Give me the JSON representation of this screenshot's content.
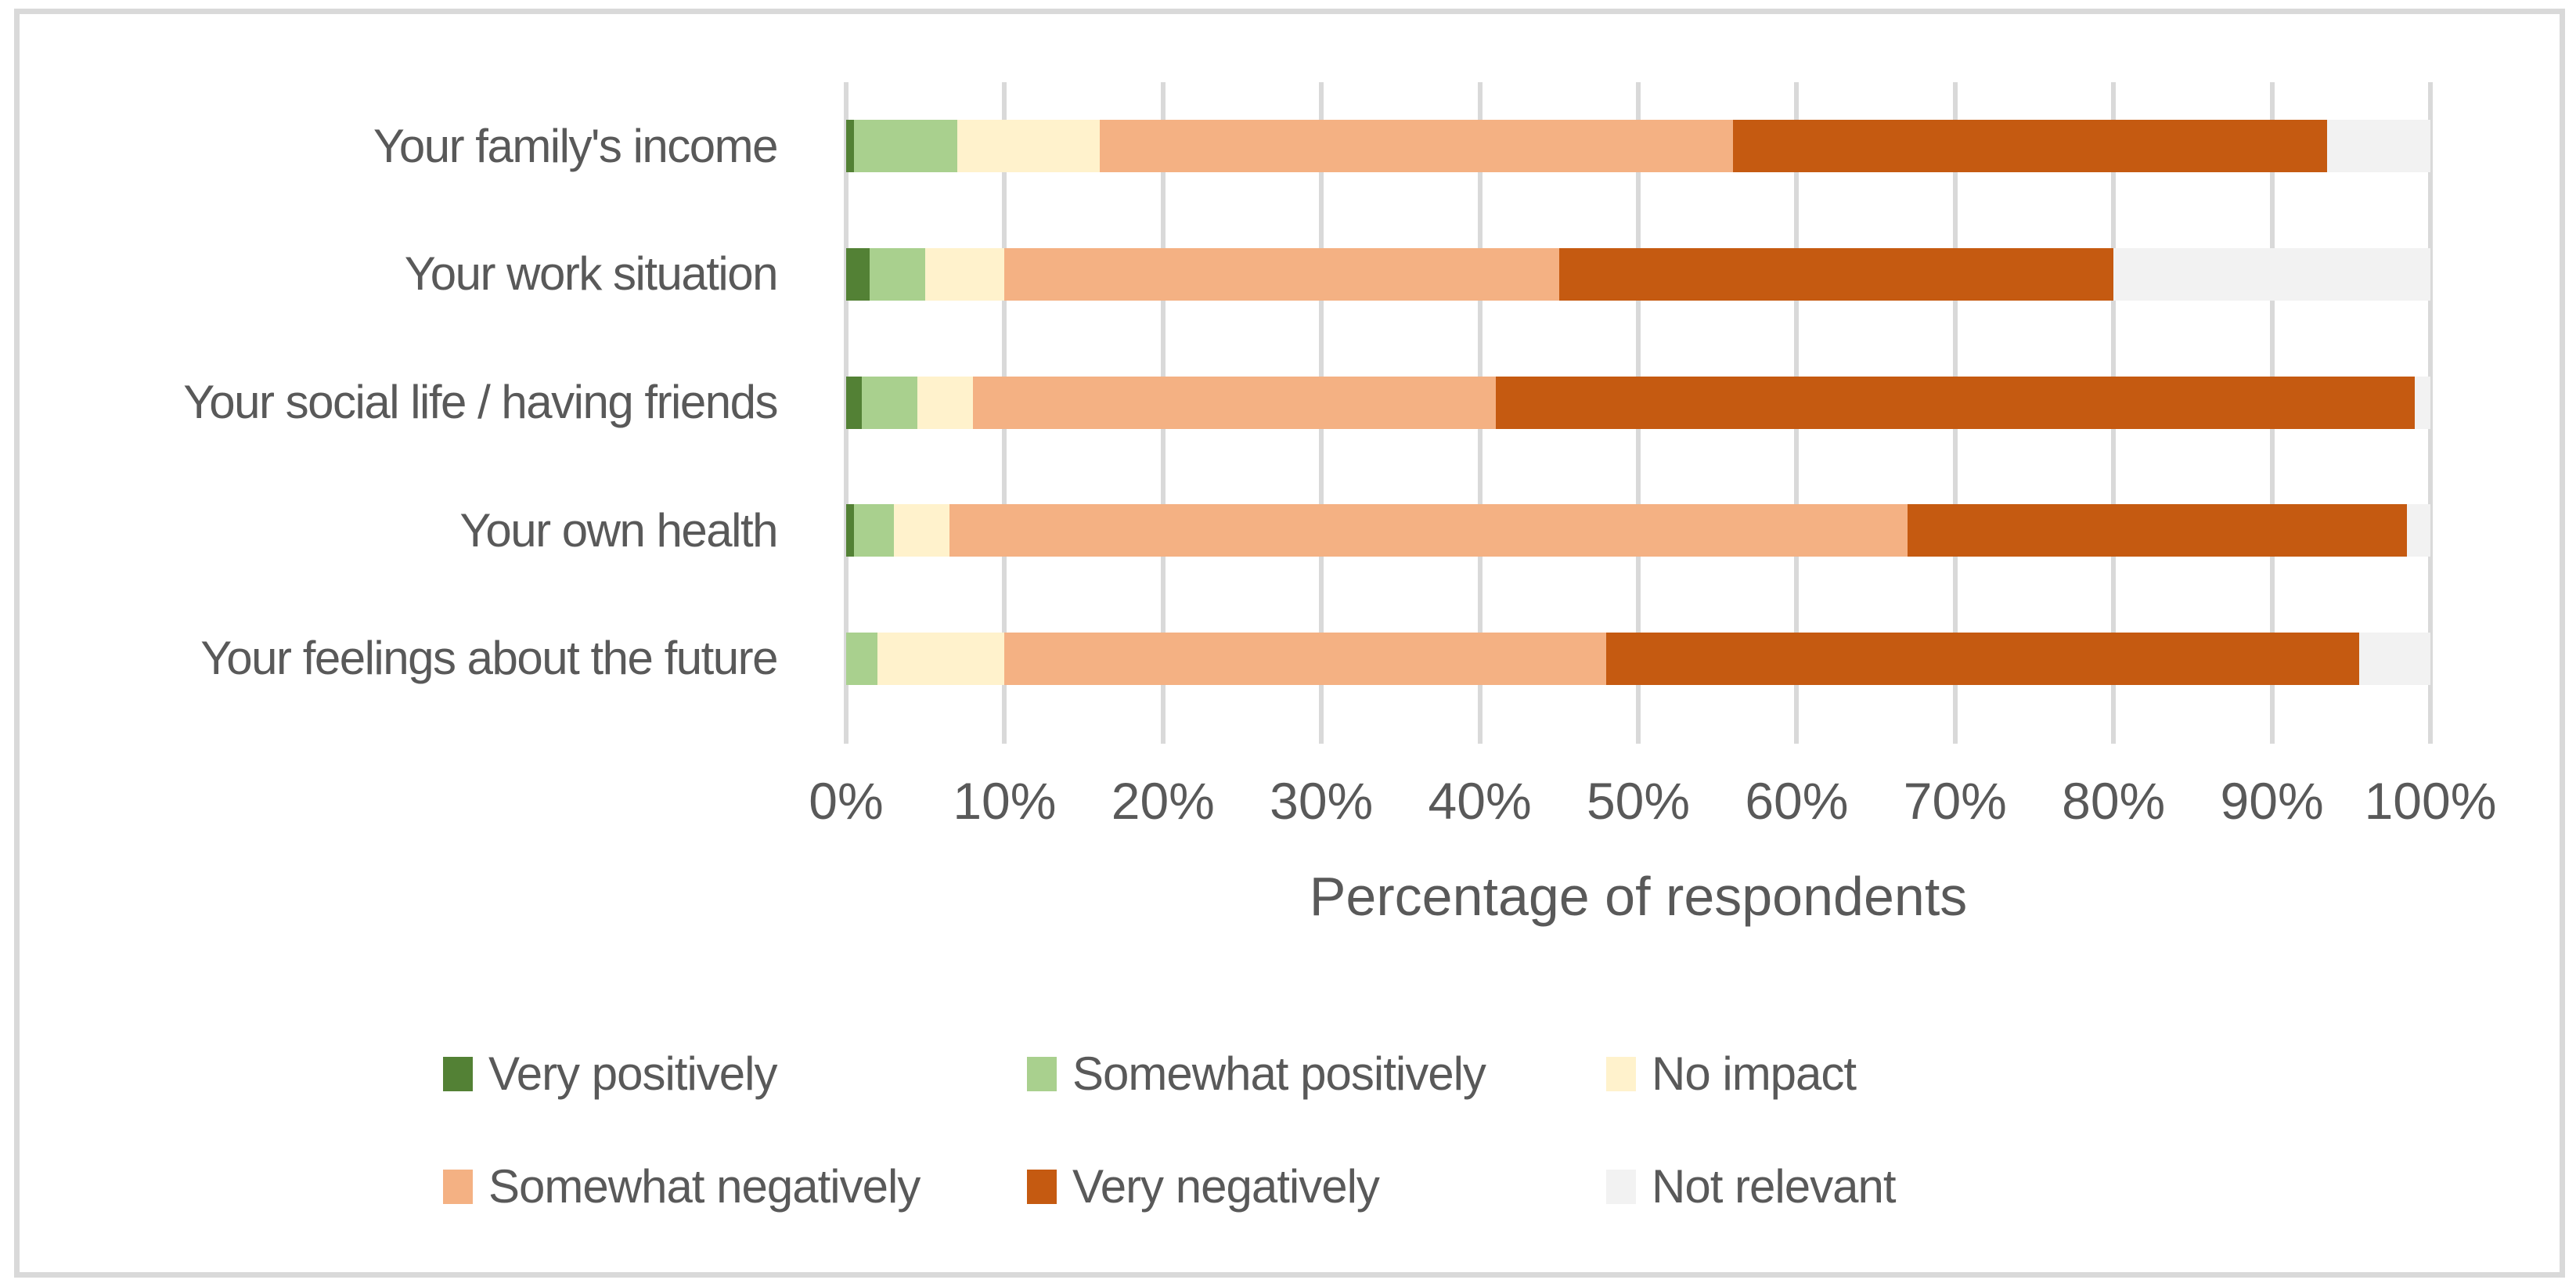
{
  "chart_data": {
    "type": "bar",
    "variant": "horizontal-stacked",
    "title": "",
    "xlabel": "Percentage of respondents",
    "ylabel": "",
    "xlim": [
      0,
      100
    ],
    "x_ticks": [
      "0%",
      "10%",
      "20%",
      "30%",
      "40%",
      "50%",
      "60%",
      "70%",
      "80%",
      "90%",
      "100%"
    ],
    "grid": "vertical-major-gridlines",
    "legend_position": "bottom-two-rows",
    "categories": [
      "Your family's income",
      "Your work situation",
      "Your social life / having friends",
      "Your own health",
      "Your feelings about the future"
    ],
    "series": [
      {
        "name": "Very positively",
        "color": "#538135",
        "values": [
          0.5,
          1.5,
          1.0,
          0.5,
          0.0
        ]
      },
      {
        "name": "Somewhat positively",
        "color": "#A9D08E",
        "values": [
          6.5,
          3.5,
          3.5,
          2.5,
          2.0
        ]
      },
      {
        "name": "No impact",
        "color": "#FFF2CC",
        "values": [
          9.0,
          5.0,
          3.5,
          3.5,
          8.0
        ]
      },
      {
        "name": "Somewhat negatively",
        "color": "#F4B183",
        "values": [
          40.0,
          35.0,
          33.0,
          60.5,
          38.0
        ]
      },
      {
        "name": "Very negatively",
        "color": "#C55A11",
        "values": [
          37.5,
          35.0,
          58.0,
          31.5,
          47.5
        ]
      },
      {
        "name": "Not relevant",
        "color": "#F2F2F2",
        "values": [
          6.5,
          20.0,
          1.0,
          1.5,
          4.5
        ]
      }
    ]
  },
  "style_colors": {
    "gridline": "#D9D9D9",
    "text": "#595959",
    "frame_border": "#D9D9D9",
    "background": "#FFFFFF"
  }
}
